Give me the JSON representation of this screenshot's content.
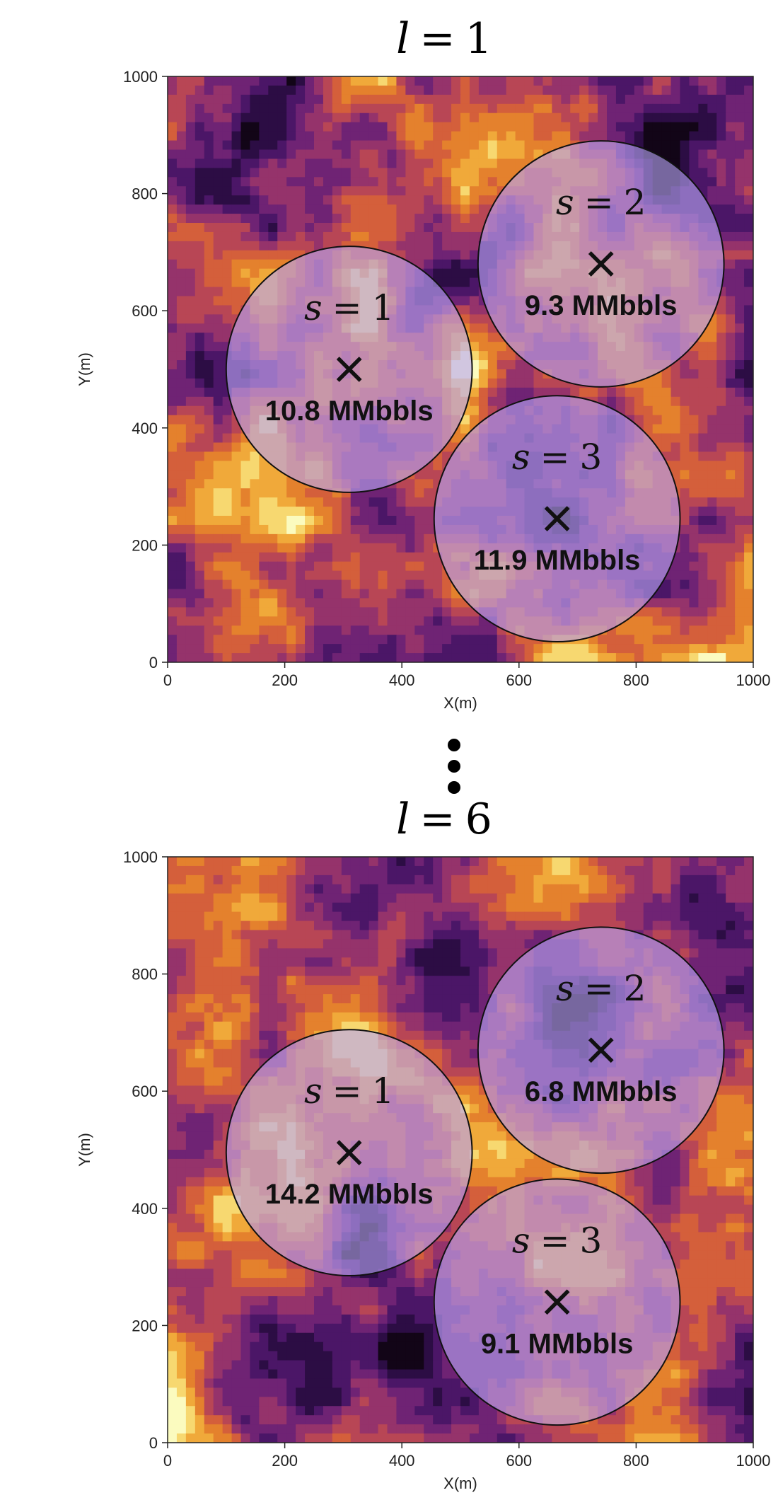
{
  "colors": {
    "colormap": [
      "#120517",
      "#2c0d44",
      "#4b1667",
      "#6f2374",
      "#95336b",
      "#b84655",
      "#d45f3b",
      "#e4812d",
      "#f0a93a",
      "#f7d870",
      "#fbfbbf"
    ],
    "circle_fill": "#b7a4f4",
    "marker": "#111111"
  },
  "separator": {
    "icon": "vertical-ellipsis-icon"
  },
  "chart_data": [
    {
      "type": "heatmap",
      "title_var": "l",
      "title_eq": "=",
      "title_val": "1",
      "xlabel": "X(m)",
      "ylabel": "Y(m)",
      "xlim": [
        0,
        1000
      ],
      "ylim": [
        0,
        1000
      ],
      "xticks": [
        "0",
        "200",
        "400",
        "600",
        "800",
        "1000"
      ],
      "yticks": [
        "0",
        "200",
        "400",
        "600",
        "800",
        "1000"
      ],
      "grid": false,
      "sites": [
        {
          "var": "s",
          "eq": "=",
          "num": "1",
          "x": 310,
          "y": 500,
          "radius": 210,
          "volume": "10.8 MMbbls"
        },
        {
          "var": "s",
          "eq": "=",
          "num": "2",
          "x": 740,
          "y": 680,
          "radius": 210,
          "volume": "9.3 MMbbls"
        },
        {
          "var": "s",
          "eq": "=",
          "num": "3",
          "x": 665,
          "y": 245,
          "radius": 210,
          "volume": "11.9 MMbbls"
        }
      ]
    },
    {
      "type": "heatmap",
      "title_var": "l",
      "title_eq": "=",
      "title_val": "6",
      "xlabel": "X(m)",
      "ylabel": "Y(m)",
      "xlim": [
        0,
        1000
      ],
      "ylim": [
        0,
        1000
      ],
      "xticks": [
        "0",
        "200",
        "400",
        "600",
        "800",
        "1000"
      ],
      "yticks": [
        "0",
        "200",
        "400",
        "600",
        "800",
        "1000"
      ],
      "grid": false,
      "sites": [
        {
          "var": "s",
          "eq": "=",
          "num": "1",
          "x": 310,
          "y": 495,
          "radius": 210,
          "volume": "14.2 MMbbls"
        },
        {
          "var": "s",
          "eq": "=",
          "num": "2",
          "x": 740,
          "y": 670,
          "radius": 210,
          "volume": "6.8 MMbbls"
        },
        {
          "var": "s",
          "eq": "=",
          "num": "3",
          "x": 665,
          "y": 240,
          "radius": 210,
          "volume": "9.1 MMbbls"
        }
      ]
    }
  ]
}
